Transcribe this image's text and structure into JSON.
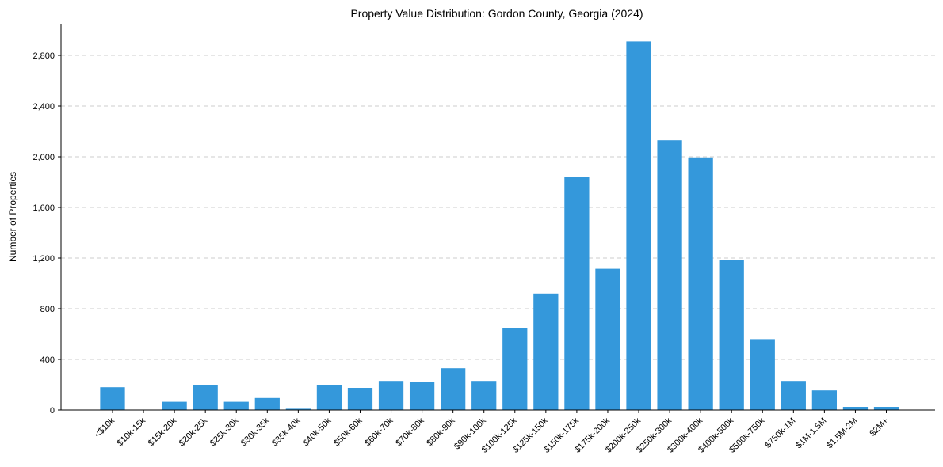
{
  "chart_data": {
    "type": "bar",
    "title": "Property Value Distribution: Gordon County, Georgia (2024)",
    "xlabel": "",
    "ylabel": "Number of Properties",
    "ylim": [
      0,
      3050
    ],
    "yticks": [
      0,
      400,
      800,
      1200,
      1600,
      2000,
      2400,
      2800
    ],
    "ytick_labels": [
      "0",
      "400",
      "800",
      "1,200",
      "1,600",
      "2,000",
      "2,400",
      "2,800"
    ],
    "grid": "y-dashed",
    "bar_color": "#3498db",
    "categories": [
      "<$10k",
      "$10k-15k",
      "$15k-20k",
      "$20k-25k",
      "$25k-30k",
      "$30k-35k",
      "$35k-40k",
      "$40k-50k",
      "$50k-60k",
      "$60k-70k",
      "$70k-80k",
      "$80k-90k",
      "$90k-100k",
      "$100k-125k",
      "$125k-150k",
      "$150k-175k",
      "$175k-200k",
      "$200k-250k",
      "$250k-300k",
      "$300k-400k",
      "$400k-500k",
      "$500k-750k",
      "$750k-1M",
      "$1M-1.5M",
      "$1.5M-2M",
      "$2M+"
    ],
    "values": [
      180,
      0,
      65,
      195,
      65,
      95,
      10,
      200,
      175,
      230,
      220,
      330,
      230,
      650,
      920,
      1840,
      1115,
      2910,
      2130,
      1995,
      1185,
      560,
      230,
      155,
      25,
      25
    ]
  }
}
